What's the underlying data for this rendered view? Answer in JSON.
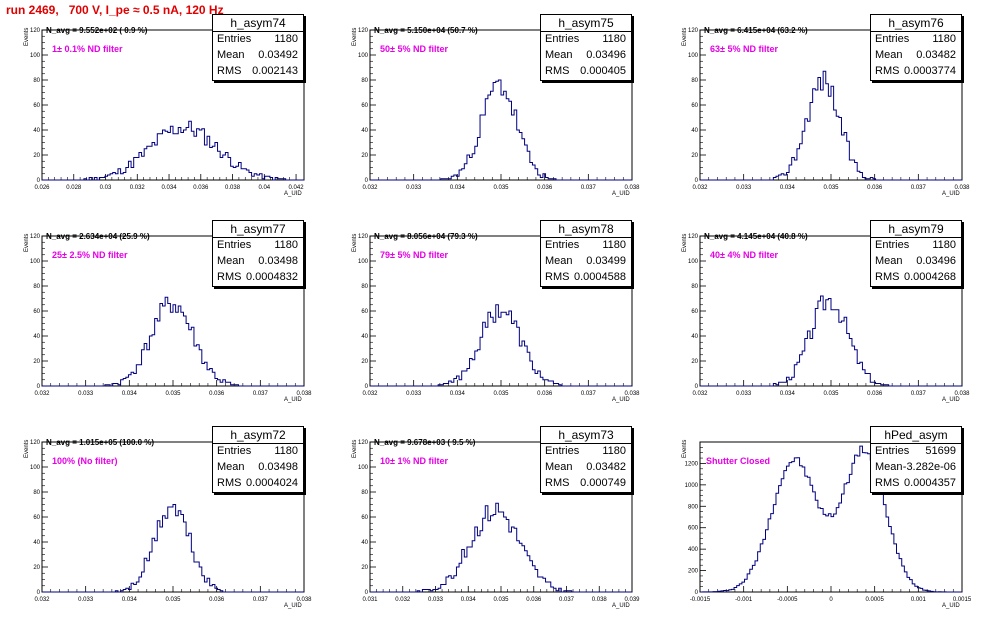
{
  "title": "run 2469,   700 V, I_pe ≈ 0.5 nA, 120 Hz",
  "ylabel": "Events",
  "xlabel": "A_UID",
  "colors": {
    "title": "#e00000",
    "annotation": "#e600e6",
    "histogram": "#000080"
  },
  "chart_data": [
    {
      "type": "histogram",
      "name": "h_asym74",
      "navg": "N_avg = 9.552e+02 ( 0.9 %)",
      "filter": "1± 0.1% ND filter",
      "stats": {
        "entries": "1180",
        "mean": "0.03492",
        "rms": "0.002143"
      },
      "xlim": [
        0.026,
        0.0425
      ],
      "ylim": [
        0,
        120
      ],
      "xticks": [
        "0.026",
        "0.028",
        "0.03",
        "0.032",
        "0.034",
        "0.036",
        "0.038",
        "0.04",
        "0.042"
      ],
      "yticks": [
        "0",
        "20",
        "40",
        "60",
        "80",
        "100",
        "120"
      ],
      "mean": 0.03492,
      "sigma": 0.002143,
      "peak": 42,
      "seed": 11
    },
    {
      "type": "histogram",
      "name": "h_asym75",
      "navg": "N_avg = 5.150e+04 (50.7 %)",
      "filter": "50± 5% ND filter",
      "stats": {
        "entries": "1180",
        "mean": "0.03496",
        "rms": "0.000405"
      },
      "xlim": [
        0.032,
        0.038
      ],
      "ylim": [
        0,
        120
      ],
      "xticks": [
        "0.032",
        "0.033",
        "0.034",
        "0.035",
        "0.036",
        "0.037",
        "0.038"
      ],
      "yticks": [
        "0",
        "20",
        "40",
        "60",
        "80",
        "100",
        "120"
      ],
      "mean": 0.03496,
      "sigma": 0.000405,
      "peak": 76,
      "seed": 23
    },
    {
      "type": "histogram",
      "name": "h_asym76",
      "navg": "N_avg = 6.415e+04 (63.2 %)",
      "filter": "63± 5% ND filter",
      "stats": {
        "entries": "1180",
        "mean": "0.03482",
        "rms": "0.0003774"
      },
      "xlim": [
        0.032,
        0.038
      ],
      "ylim": [
        0,
        120
      ],
      "xticks": [
        "0.032",
        "0.033",
        "0.034",
        "0.035",
        "0.036",
        "0.037",
        "0.038"
      ],
      "yticks": [
        "0",
        "20",
        "40",
        "60",
        "80",
        "100",
        "120"
      ],
      "mean": 0.03482,
      "sigma": 0.0003774,
      "peak": 80,
      "seed": 37
    },
    {
      "type": "histogram",
      "name": "h_asym77",
      "navg": "N_avg = 2.634e+04 (25.9 %)",
      "filter": "25± 2.5% ND filter",
      "stats": {
        "entries": "1180",
        "mean": "0.03498",
        "rms": "0.0004832"
      },
      "xlim": [
        0.032,
        0.038
      ],
      "ylim": [
        0,
        120
      ],
      "xticks": [
        "0.032",
        "0.033",
        "0.034",
        "0.035",
        "0.036",
        "0.037",
        "0.038"
      ],
      "yticks": [
        "0",
        "20",
        "40",
        "60",
        "80",
        "100",
        "120"
      ],
      "mean": 0.03498,
      "sigma": 0.0004832,
      "peak": 66,
      "seed": 41
    },
    {
      "type": "histogram",
      "name": "h_asym78",
      "navg": "N_avg = 8.056e+04 (79.3 %)",
      "filter": "79± 5% ND filter",
      "stats": {
        "entries": "1180",
        "mean": "0.03499",
        "rms": "0.0004588"
      },
      "xlim": [
        0.032,
        0.038
      ],
      "ylim": [
        0,
        120
      ],
      "xticks": [
        "0.032",
        "0.033",
        "0.034",
        "0.035",
        "0.036",
        "0.037",
        "0.038"
      ],
      "yticks": [
        "0",
        "20",
        "40",
        "60",
        "80",
        "100",
        "120"
      ],
      "mean": 0.03499,
      "sigma": 0.0004588,
      "peak": 62,
      "seed": 53
    },
    {
      "type": "histogram",
      "name": "h_asym79",
      "navg": "N_avg = 4.145e+04 (40.8 %)",
      "filter": "40± 4% ND filter",
      "stats": {
        "entries": "1180",
        "mean": "0.03496",
        "rms": "0.0004268"
      },
      "xlim": [
        0.032,
        0.038
      ],
      "ylim": [
        0,
        120
      ],
      "xticks": [
        "0.032",
        "0.033",
        "0.034",
        "0.035",
        "0.036",
        "0.037",
        "0.038"
      ],
      "yticks": [
        "0",
        "20",
        "40",
        "60",
        "80",
        "100",
        "120"
      ],
      "mean": 0.03496,
      "sigma": 0.0004268,
      "peak": 70,
      "seed": 67
    },
    {
      "type": "histogram",
      "name": "h_asym72",
      "navg": "N_avg = 1.015e+05 (100.0 %)",
      "filter": "100% (No filter)",
      "stats": {
        "entries": "1180",
        "mean": "0.03498",
        "rms": "0.0004024"
      },
      "xlim": [
        0.032,
        0.038
      ],
      "ylim": [
        0,
        120
      ],
      "xticks": [
        "0.032",
        "0.033",
        "0.034",
        "0.035",
        "0.036",
        "0.037",
        "0.038"
      ],
      "yticks": [
        "0",
        "20",
        "40",
        "60",
        "80",
        "100",
        "120"
      ],
      "mean": 0.03498,
      "sigma": 0.0004024,
      "peak": 68,
      "seed": 71
    },
    {
      "type": "histogram",
      "name": "h_asym73",
      "navg": "N_avg = 9.678e+03 ( 9.5 %)",
      "filter": "10± 1% ND filter",
      "stats": {
        "entries": "1180",
        "mean": "0.03482",
        "rms": "0.000749"
      },
      "xlim": [
        0.031,
        0.039
      ],
      "ylim": [
        0,
        120
      ],
      "xticks": [
        "0.031",
        "0.032",
        "0.033",
        "0.034",
        "0.035",
        "0.036",
        "0.037",
        "0.038",
        "0.039"
      ],
      "yticks": [
        "0",
        "20",
        "40",
        "60",
        "80",
        "100",
        "120"
      ],
      "mean": 0.03482,
      "sigma": 0.000749,
      "peak": 66,
      "seed": 83
    },
    {
      "type": "histogram",
      "name": "hPed_asym",
      "navg": "",
      "filter": "Shutter Closed",
      "stats": {
        "entries": "51699",
        "mean": "-3.282e-06",
        "rms": "0.0004357"
      },
      "xlim": [
        -0.0015,
        0.0015
      ],
      "ylim": [
        0,
        1400
      ],
      "xticks": [
        "-0.0015",
        "-0.001",
        "-0.0005",
        "0",
        "0.0005",
        "0.001",
        "0.0015"
      ],
      "yticks": [
        "0",
        "200",
        "400",
        "600",
        "800",
        "1000",
        "1200"
      ],
      "bimodal": [
        {
          "mean": -0.00042,
          "sigma": 0.00026,
          "peak": 1230
        },
        {
          "mean": 0.00038,
          "sigma": 0.00024,
          "peak": 1320
        }
      ],
      "seed": 97
    }
  ]
}
